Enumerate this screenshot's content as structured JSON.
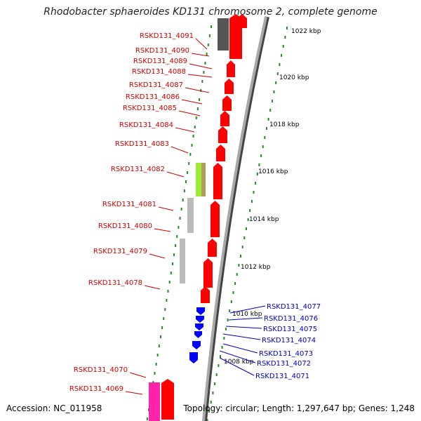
{
  "title": "Rhodobacter sphaeroides KD131 chromosome 2, complete genome",
  "accession": "Accession: NC_011958",
  "topology": "Topology: circular; Length: 1,297,647 bp; Genes: 1,248",
  "colors": {
    "forward_cds": "#ff0000",
    "reverse_cds": "#0000ff",
    "tick": "#228b22",
    "backbone": "#999999",
    "forward_label": "#cc0000",
    "reverse_label": "#0000cc"
  },
  "scale_labels": [
    "1022 kbp",
    "1020 kbp",
    "1018 kbp",
    "1016 kbp",
    "1014 kbp",
    "1012 kbp",
    "1010 kbp",
    "1008 kbp"
  ],
  "forward_genes": [
    "RSKD131_4091",
    "RSKD131_4090",
    "RSKD131_4089",
    "RSKD131_4088",
    "RSKD131_4087",
    "RSKD131_4086",
    "RSKD131_4085",
    "RSKD131_4084",
    "RSKD131_4083",
    "RSKD131_4082",
    "RSKD131_4081",
    "RSKD131_4080",
    "RSKD131_4079",
    "RSKD131_4078",
    "RSKD131_4070",
    "RSKD131_4069"
  ],
  "reverse_genes": [
    "RSKD131_4077",
    "RSKD131_4076",
    "RSKD131_4075",
    "RSKD131_4074",
    "RSKD131_4073",
    "RSKD131_4072",
    "RSKD131_4071"
  ]
}
